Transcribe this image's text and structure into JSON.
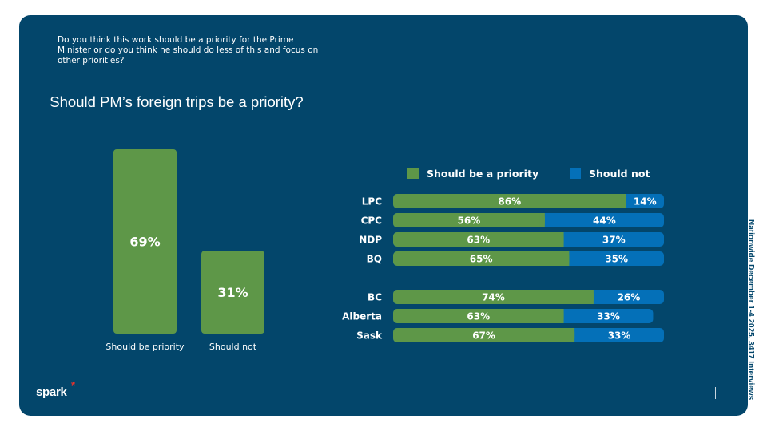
{
  "question": "Do you think this work should be a priority for the Prime Minister or do you think he should do less of this and focus on other priorities?",
  "side_note": "Nationwide December 1-4 2025, 3417 Interviews",
  "logo": {
    "text": "spark",
    "star": "*"
  },
  "colors": {
    "background": "#03466b",
    "priority": "#5e9748",
    "not": "#0470b8",
    "text": "#ffffff"
  },
  "chart_data": [
    {
      "type": "bar",
      "title": "Should PM’s foreign trips be a priority?",
      "categories": [
        "Should be priority",
        "Should not"
      ],
      "values": [
        69,
        31
      ],
      "labels": [
        "69%",
        "31%"
      ],
      "ylim": [
        0,
        100
      ],
      "grid": false
    },
    {
      "type": "bar",
      "orientation": "horizontal-stacked",
      "legend": {
        "position": "top",
        "entries": [
          "Should be a priority",
          "Should not"
        ]
      },
      "groups": [
        {
          "categories": [
            "LPC",
            "CPC",
            "NDP",
            "BQ"
          ]
        },
        {
          "categories": [
            "BC",
            "Alberta",
            "Sask"
          ]
        }
      ],
      "categories": [
        "LPC",
        "CPC",
        "NDP",
        "BQ",
        "BC",
        "Alberta",
        "Sask"
      ],
      "series": [
        {
          "name": "Should be a priority",
          "values": [
            86,
            56,
            63,
            65,
            74,
            63,
            67
          ]
        },
        {
          "name": "Should not",
          "values": [
            14,
            44,
            37,
            35,
            26,
            33,
            33
          ]
        }
      ],
      "xlim": [
        0,
        100
      ],
      "grid": false
    }
  ]
}
